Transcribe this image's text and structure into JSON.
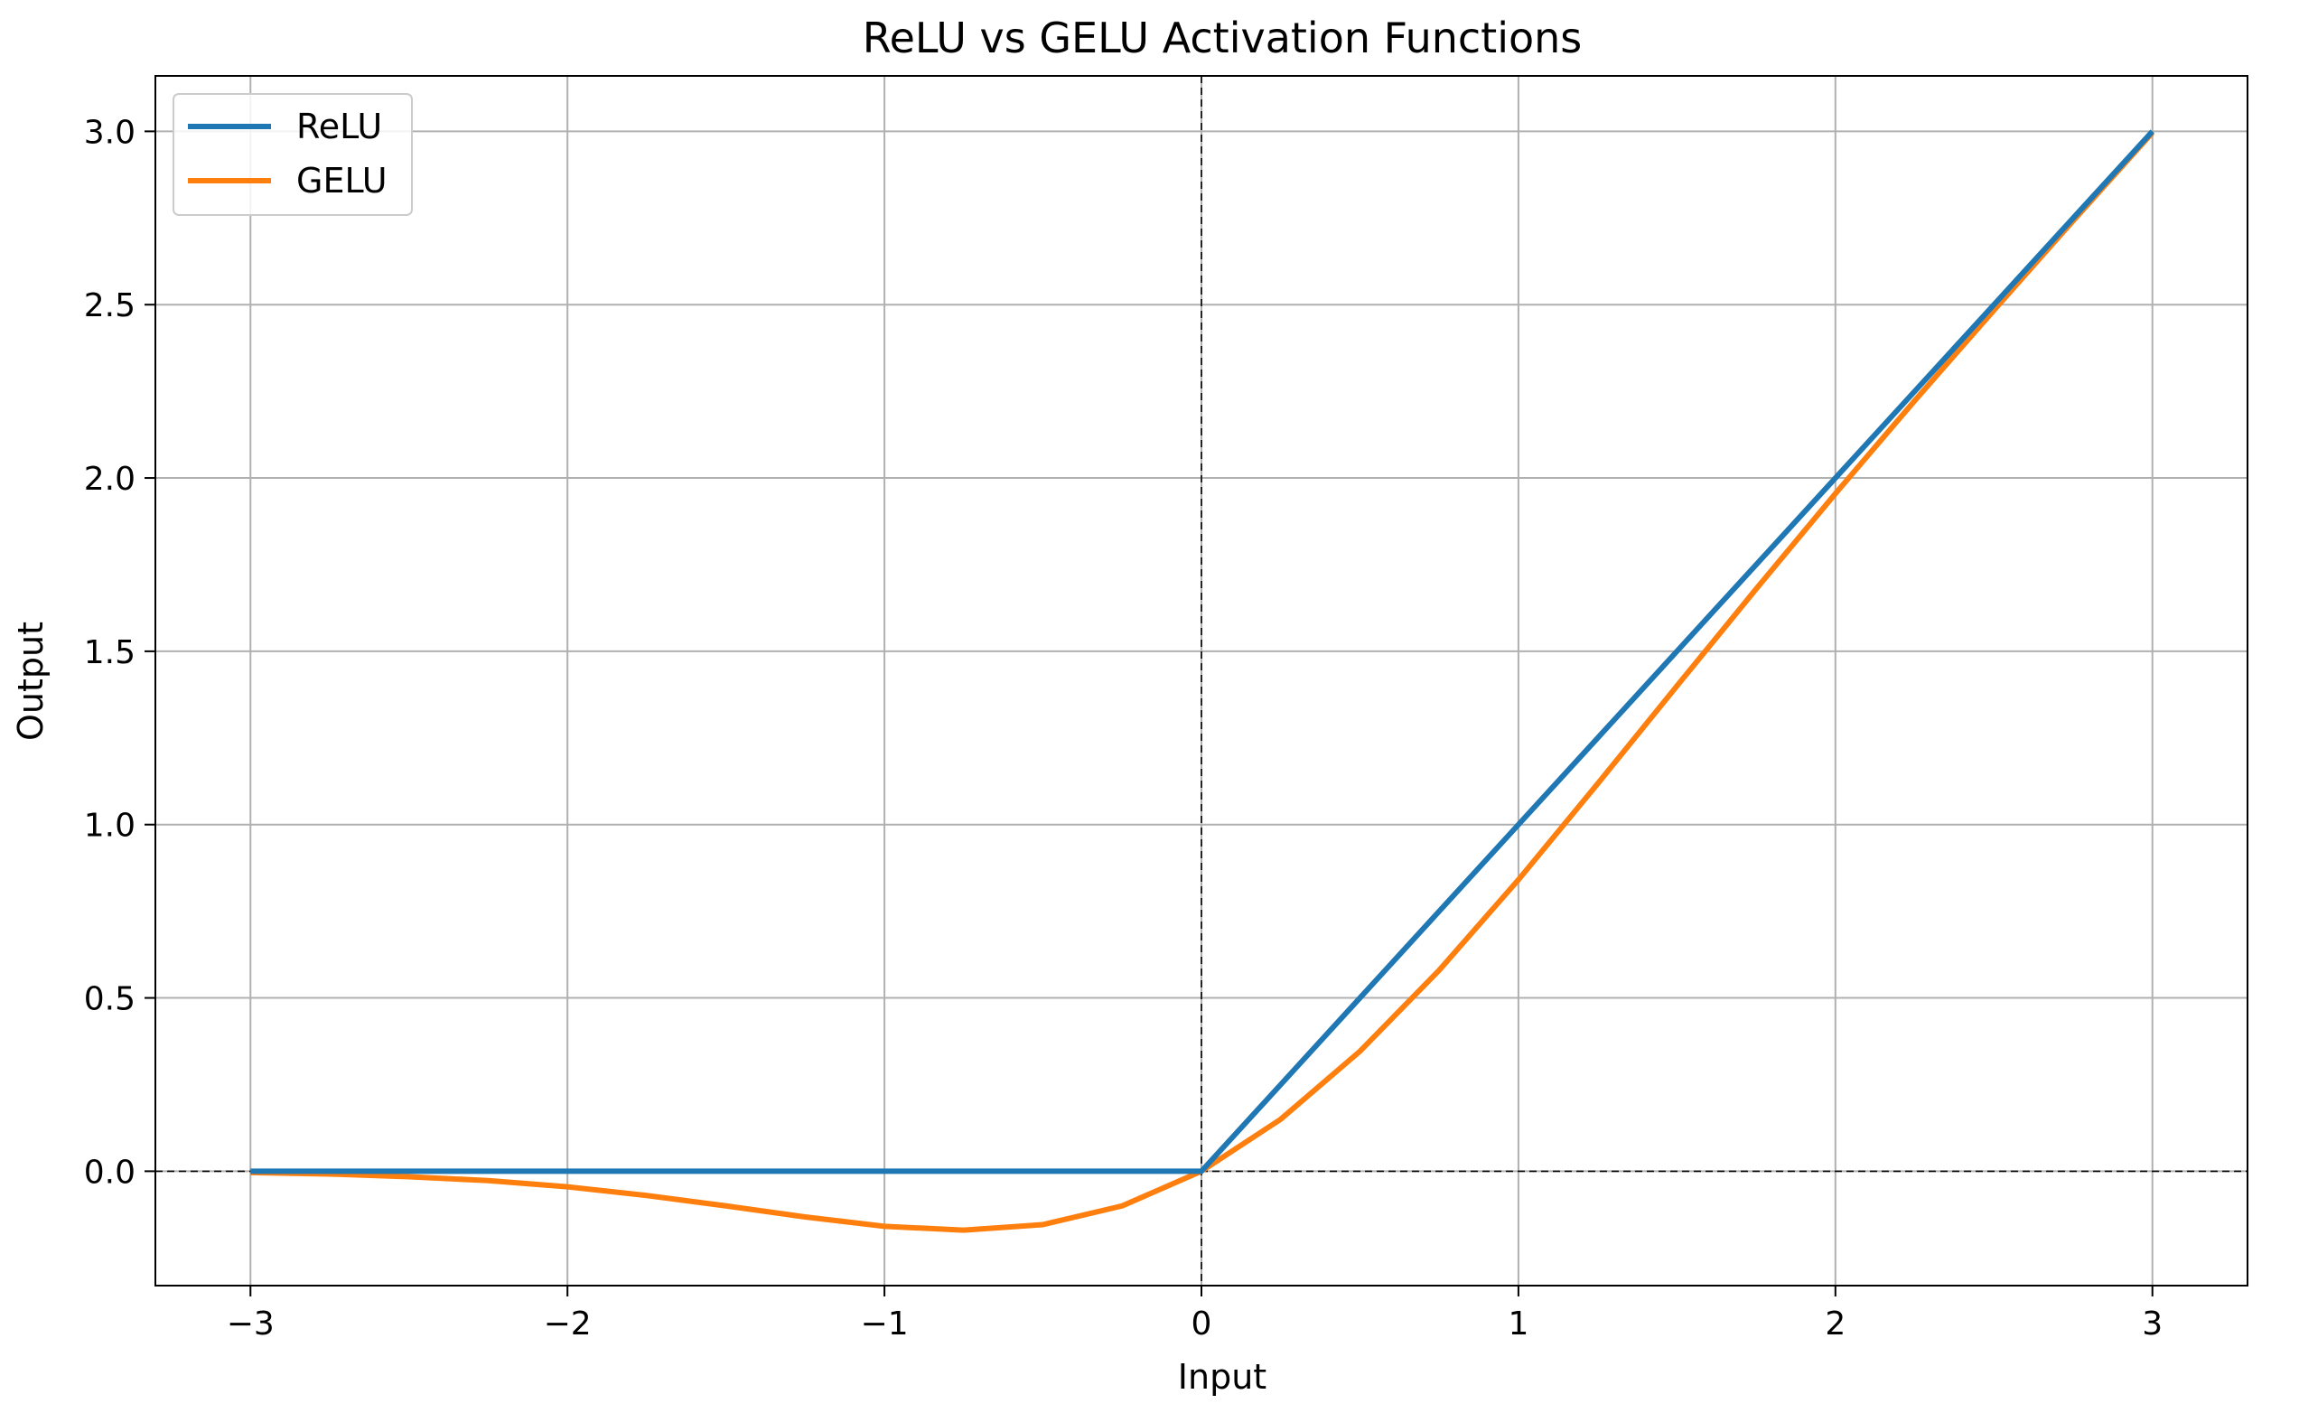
{
  "chart_data": {
    "type": "line",
    "title": "ReLU vs GELU Activation Functions",
    "xlabel": "Input",
    "ylabel": "Output",
    "xlim": [
      -3.3,
      3.3
    ],
    "ylim": [
      -0.33,
      3.16
    ],
    "xticks": [
      -3,
      -2,
      -1,
      0,
      1,
      2,
      3
    ],
    "xtick_labels": [
      "−3",
      "−2",
      "−1",
      "0",
      "1",
      "2",
      "3"
    ],
    "yticks": [
      0.0,
      0.5,
      1.0,
      1.5,
      2.0,
      2.5,
      3.0
    ],
    "ytick_labels": [
      "0.0",
      "0.5",
      "1.0",
      "1.5",
      "2.0",
      "2.5",
      "3.0"
    ],
    "grid": true,
    "reference_lines": {
      "x": 0,
      "y": 0,
      "style": "dashed",
      "color": "#000000"
    },
    "legend_position": "top-left",
    "series": [
      {
        "name": "ReLU",
        "color": "#1f77b4",
        "x": [
          -3.0,
          -2.5,
          -2.0,
          -1.5,
          -1.0,
          -0.75,
          -0.5,
          -0.25,
          0.0,
          0.25,
          0.5,
          0.75,
          1.0,
          1.25,
          1.5,
          1.75,
          2.0,
          2.25,
          2.5,
          2.75,
          3.0
        ],
        "y": [
          0.0,
          0.0,
          0.0,
          0.0,
          0.0,
          0.0,
          0.0,
          0.0,
          0.0,
          0.25,
          0.5,
          0.75,
          1.0,
          1.25,
          1.5,
          1.75,
          2.0,
          2.25,
          2.5,
          2.75,
          3.0
        ]
      },
      {
        "name": "GELU",
        "color": "#ff7f0e",
        "x": [
          -3.0,
          -2.75,
          -2.5,
          -2.25,
          -2.0,
          -1.75,
          -1.5,
          -1.25,
          -1.0,
          -0.75,
          -0.5,
          -0.25,
          0.0,
          0.25,
          0.5,
          0.75,
          1.0,
          1.25,
          1.5,
          1.75,
          2.0,
          2.25,
          2.5,
          2.75,
          3.0
        ],
        "y": [
          -0.004,
          -0.008,
          -0.016,
          -0.027,
          -0.045,
          -0.07,
          -0.1,
          -0.132,
          -0.159,
          -0.17,
          -0.154,
          -0.1,
          0.0,
          0.15,
          0.346,
          0.58,
          0.841,
          1.118,
          1.4,
          1.68,
          1.955,
          2.223,
          2.484,
          2.742,
          2.996
        ]
      }
    ]
  }
}
